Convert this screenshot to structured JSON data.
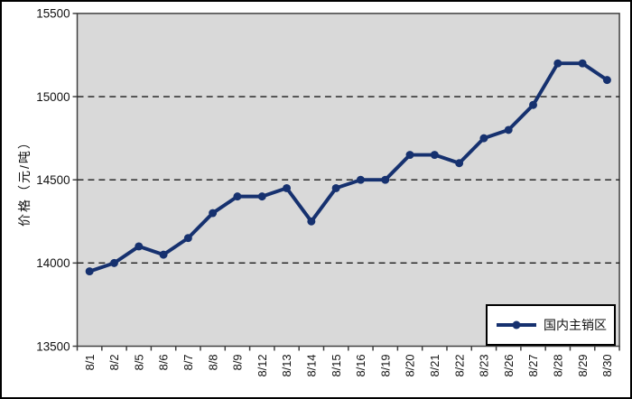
{
  "chart_data": {
    "type": "line",
    "title": "",
    "ylabel": "价格（元/吨）",
    "xlabel": "",
    "categories": [
      "8/1",
      "8/2",
      "8/5",
      "8/6",
      "8/7",
      "8/8",
      "8/9",
      "8/12",
      "8/13",
      "8/14",
      "8/15",
      "8/16",
      "8/19",
      "8/20",
      "8/21",
      "8/22",
      "8/23",
      "8/26",
      "8/27",
      "8/28",
      "8/29",
      "8/30"
    ],
    "series": [
      {
        "name": "国内主销区",
        "values": [
          13950,
          14000,
          14100,
          14050,
          14150,
          14300,
          14400,
          14400,
          14450,
          14250,
          14450,
          14500,
          14500,
          14650,
          14650,
          14600,
          14750,
          14800,
          14950,
          15200,
          15200,
          15100
        ]
      }
    ],
    "ylim": [
      13500,
      15500
    ],
    "yticks": [
      13500,
      14000,
      14500,
      15000,
      15500
    ],
    "grid": "horizontal-dashed",
    "legend_position": "inside-bottom-right",
    "marker": "circle",
    "colors": {
      "series": "#16316F",
      "plot_background": "#D9D9D9",
      "plot_border": "#404040",
      "gridline": "#1A1A1A",
      "frame": "#000000",
      "text": "#111111",
      "legend_background": "#FFFFFF",
      "legend_border": "#000000"
    }
  }
}
